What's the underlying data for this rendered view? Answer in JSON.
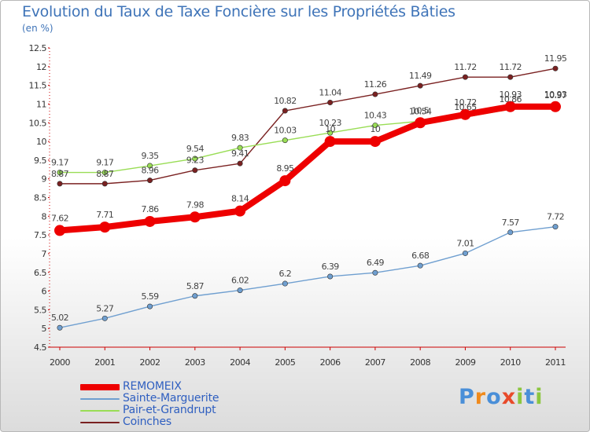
{
  "chart_data": {
    "type": "line",
    "title": "Evolution du Taux de Taxe Foncière sur les Propriétés Bâties",
    "subtitle": "(en %)",
    "xlabel": "",
    "ylabel": "(en %)",
    "x": [
      "2000",
      "2001",
      "2002",
      "2003",
      "2004",
      "2005",
      "2006",
      "2007",
      "2008",
      "2009",
      "2010",
      "2011"
    ],
    "ylim": [
      4.5,
      12.5
    ],
    "yticks": [
      "4.5",
      "5",
      "5.5",
      "6",
      "6.5",
      "7",
      "7.5",
      "8",
      "8.5",
      "9",
      "9.5",
      "10",
      "10.5",
      "11",
      "11.5",
      "12",
      "12.5"
    ],
    "grid": false,
    "legend_position": "bottom-left",
    "series": [
      {
        "name": "REMOMEIX",
        "color": "#ee0000",
        "values": [
          7.62,
          7.71,
          7.86,
          7.98,
          8.14,
          8.95,
          10,
          10,
          10.5,
          10.72,
          10.93,
          10.93
        ],
        "labels": [
          "7.62",
          "7.71",
          "7.86",
          "7.98",
          "8.14",
          "8.95",
          "10",
          "10",
          "10.5",
          "10.72",
          "10.93",
          "10.93"
        ]
      },
      {
        "name": "Sainte-Marguerite",
        "color": "#6f9fd0",
        "values": [
          5.02,
          5.27,
          5.59,
          5.87,
          6.02,
          6.2,
          6.39,
          6.49,
          6.68,
          7.01,
          7.57,
          7.72
        ],
        "labels": [
          "5.02",
          "5.27",
          "5.59",
          "5.87",
          "6.02",
          "6.2",
          "6.39",
          "6.49",
          "6.68",
          "7.01",
          "7.57",
          "7.72"
        ]
      },
      {
        "name": "Pair-et-Grandrupt",
        "color": "#99dd55",
        "values": [
          9.17,
          9.17,
          9.35,
          9.54,
          9.83,
          10.03,
          10.23,
          10.43,
          10.54,
          10.65,
          10.86,
          10.97
        ],
        "labels": [
          "9.17",
          "9.17",
          "9.35",
          "9.54",
          "9.83",
          "10.03",
          "10.23",
          "10.43",
          "10.54",
          "10.65",
          "10.86",
          "10.97"
        ]
      },
      {
        "name": "Coinches",
        "color": "#7a2121",
        "values": [
          8.87,
          8.87,
          8.96,
          9.23,
          9.41,
          10.82,
          11.04,
          11.26,
          11.49,
          11.72,
          11.72,
          11.95
        ],
        "labels": [
          "8.87",
          "8.87",
          "8.96",
          "9.23",
          "9.41",
          "10.82",
          "11.04",
          "11.26",
          "11.49",
          "11.72",
          "11.72",
          "11.95"
        ]
      }
    ]
  },
  "logo": {
    "text": "Proxiti",
    "letters": [
      "P",
      "r",
      "o",
      "x",
      "i",
      "t",
      "i"
    ],
    "colors": [
      "#4a8fd8",
      "#f08a1c",
      "#4a8fd8",
      "#e84a2a",
      "#8cc63f",
      "#4a8fd8",
      "#8cc63f"
    ]
  }
}
